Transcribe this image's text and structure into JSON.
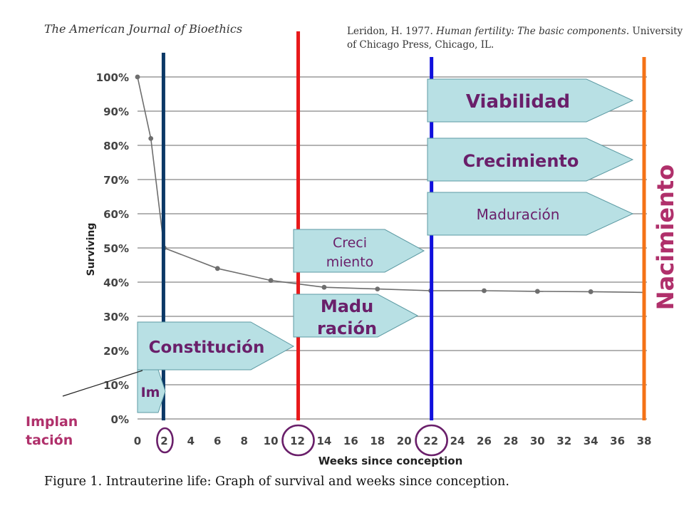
{
  "journal_title": "The American Journal of Bioethics",
  "citation": {
    "line1_plain": "Leridon, H. 1977. ",
    "line1_italic": "Human fertility: The basic components.",
    "line1_tail": " University",
    "line2": "of Chicago Press, Chicago, IL."
  },
  "caption": "Figure 1.  Intrauterine life: Graph of survival and weeks since conception.",
  "chart_data": {
    "type": "line",
    "xlabel": "Weeks since conception",
    "ylabel": "Surviving",
    "xlim": [
      0,
      38
    ],
    "ylim": [
      0,
      100
    ],
    "x_ticks": [
      0,
      2,
      4,
      6,
      8,
      10,
      12,
      14,
      16,
      18,
      20,
      22,
      24,
      26,
      28,
      30,
      32,
      34,
      36,
      38
    ],
    "y_ticks": [
      0,
      10,
      20,
      30,
      40,
      50,
      60,
      70,
      80,
      90,
      100
    ],
    "y_tick_labels": [
      "0%",
      "10%",
      "20%",
      "30%",
      "40%",
      "50%",
      "60%",
      "70%",
      "80%",
      "90%",
      "100%"
    ],
    "grid": "horizontal",
    "series": [
      {
        "points": [
          [
            0,
            100
          ],
          [
            1,
            82
          ],
          [
            2,
            50
          ],
          [
            6,
            44
          ],
          [
            10,
            40.5
          ],
          [
            14,
            38.5
          ],
          [
            18,
            38
          ],
          [
            22,
            37.5
          ],
          [
            26,
            37.5
          ],
          [
            30,
            37.3
          ],
          [
            34,
            37.2
          ]
        ],
        "tail_to": [
          38,
          37
        ]
      }
    ],
    "marker_points": [
      [
        0,
        100
      ],
      [
        1,
        82
      ],
      [
        2,
        50
      ],
      [
        6,
        44
      ],
      [
        10,
        40.5
      ],
      [
        14,
        38.5
      ],
      [
        18,
        38
      ],
      [
        22,
        37.5
      ],
      [
        26,
        37.5
      ],
      [
        30,
        37.3
      ],
      [
        34,
        37.2
      ]
    ]
  },
  "overlay": {
    "vlines": [
      {
        "name": "week-2",
        "week": 2,
        "color": "#0b3866"
      },
      {
        "name": "week-12",
        "week": 12,
        "color": "#e8191a"
      },
      {
        "name": "week-22",
        "week": 22,
        "color": "#1010dd"
      },
      {
        "name": "birth",
        "week": 38,
        "color": "#f47216"
      }
    ],
    "circled_ticks": [
      2,
      12,
      22
    ],
    "circle_color": "#6a1f6a",
    "label_color": "#6a1f6a",
    "arrow_fill": "#b8e0e4",
    "arrows": {
      "viabilidad": "Viabilidad",
      "crecimiento_big": "Crecimiento",
      "maduracion_big": "Maduración",
      "creci_line1": "Creci",
      "creci_line2": "miento",
      "madu_line1": "Madu",
      "madu_line2": "ración",
      "constitucion": "Constitución",
      "im": "Im"
    },
    "nacimiento": "Nacimiento",
    "implantacion_line1": "Implan",
    "implantacion_line2": "tación"
  }
}
